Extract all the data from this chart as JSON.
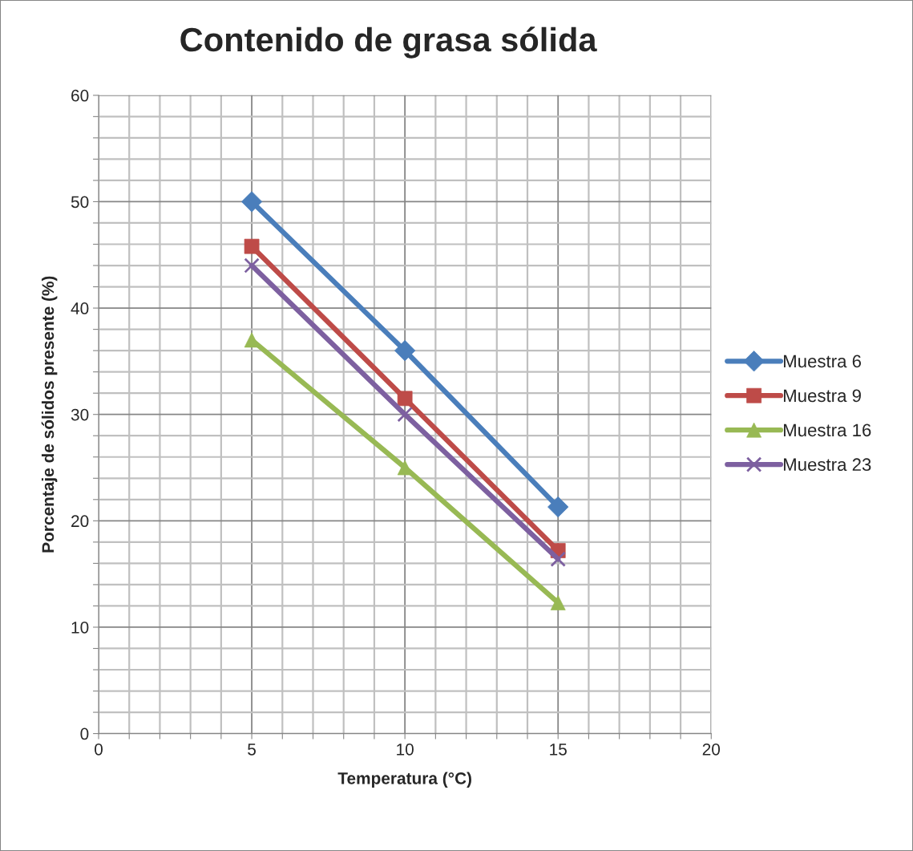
{
  "chart_data": {
    "type": "line",
    "title": "Contenido de grasa sólida",
    "xlabel": "Temperatura (°C)",
    "ylabel": "Porcentaje de sólidos presente (%)",
    "x": [
      5,
      10,
      15
    ],
    "series": [
      {
        "name": "Muestra 6",
        "color": "#4a7ebb",
        "marker": "diamond",
        "values": [
          50,
          36,
          21.3
        ]
      },
      {
        "name": "Muestra 9",
        "color": "#be4b48",
        "marker": "square",
        "values": [
          45.8,
          31.5,
          17.2
        ]
      },
      {
        "name": "Muestra 16",
        "color": "#98b954",
        "marker": "triangle",
        "values": [
          37,
          25,
          12.3
        ]
      },
      {
        "name": "Muestra 23",
        "color": "#7d60a0",
        "marker": "cross",
        "values": [
          44,
          30,
          16.4
        ]
      }
    ],
    "xlim": [
      0,
      20
    ],
    "ylim": [
      0,
      60
    ],
    "xticks": [
      0,
      {
        "value": 1,
        "label": null
      },
      {
        "value": 2,
        "label": null
      },
      {
        "value": 3,
        "label": null
      },
      {
        "value": 4,
        "label": null
      },
      5,
      {
        "value": 6,
        "label": null
      },
      {
        "value": 7,
        "label": null
      },
      {
        "value": 8,
        "label": null
      },
      {
        "value": 9,
        "label": null
      },
      10,
      {
        "value": 11,
        "label": null
      },
      {
        "value": 12,
        "label": null
      },
      {
        "value": 13,
        "label": null
      },
      {
        "value": 14,
        "label": null
      },
      15,
      {
        "value": 16,
        "label": null
      },
      {
        "value": 17,
        "label": null
      },
      {
        "value": 18,
        "label": null
      },
      {
        "value": 19,
        "label": null
      },
      20
    ],
    "yticks": [
      0,
      {
        "value": 2,
        "label": null
      },
      {
        "value": 4,
        "label": null
      },
      {
        "value": 6,
        "label": null
      },
      {
        "value": 8,
        "label": null
      },
      10,
      {
        "value": 12,
        "label": null
      },
      {
        "value": 14,
        "label": null
      },
      {
        "value": 16,
        "label": null
      },
      {
        "value": 18,
        "label": null
      },
      20,
      {
        "value": 22,
        "label": null
      },
      {
        "value": 24,
        "label": null
      },
      {
        "value": 26,
        "label": null
      },
      {
        "value": 28,
        "label": null
      },
      30,
      {
        "value": 32,
        "label": null
      },
      {
        "value": 34,
        "label": null
      },
      {
        "value": 36,
        "label": null
      },
      {
        "value": 38,
        "label": null
      },
      40,
      {
        "value": 42,
        "label": null
      },
      {
        "value": 44,
        "label": null
      },
      {
        "value": 46,
        "label": null
      },
      {
        "value": 48,
        "label": null
      },
      50,
      {
        "value": 52,
        "label": null
      },
      {
        "value": 54,
        "label": null
      },
      {
        "value": 56,
        "label": null
      },
      {
        "value": 58,
        "label": null
      },
      60
    ],
    "grid": true,
    "legend": "right",
    "line_style": "solid"
  }
}
